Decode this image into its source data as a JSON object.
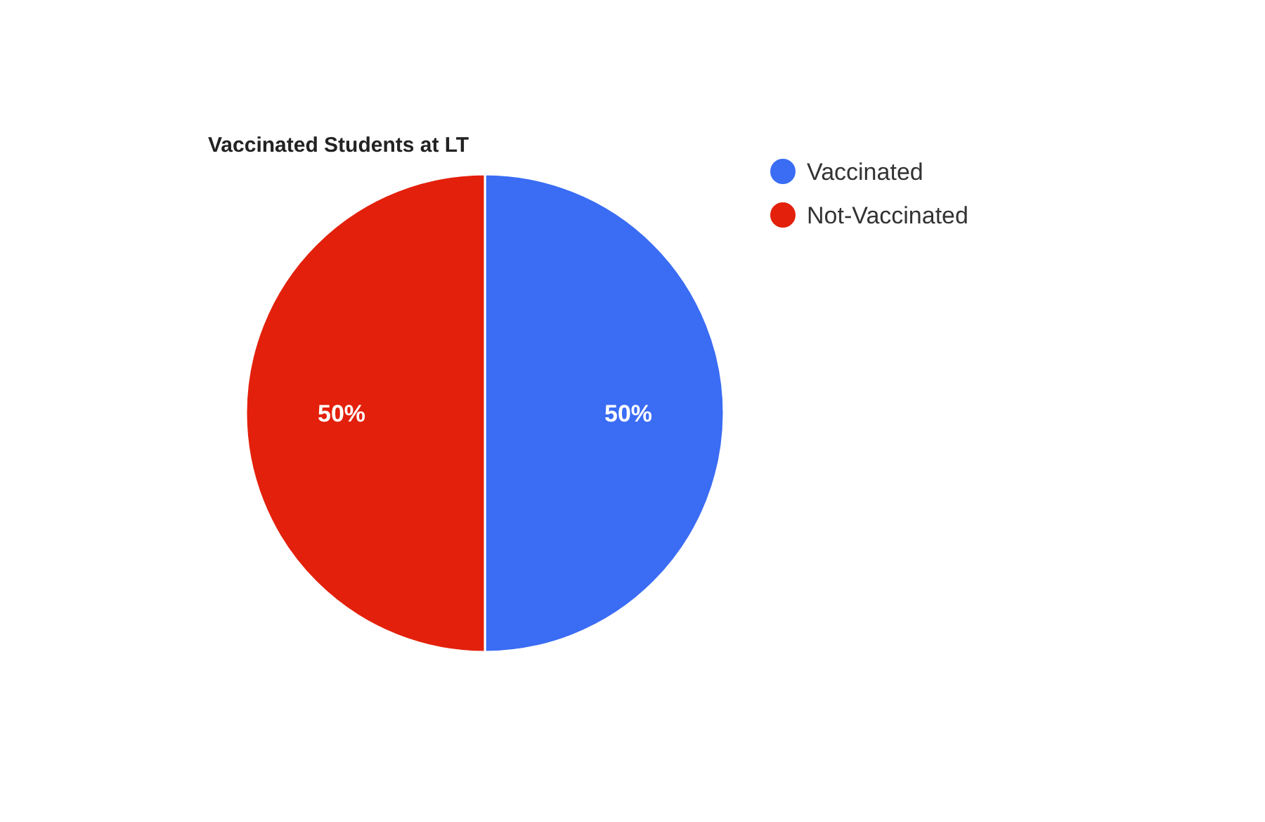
{
  "chart_data": {
    "type": "pie",
    "title": "Vaccinated Students at LT",
    "categories": [
      "Vaccinated",
      "Not-Vaccinated"
    ],
    "values": [
      50,
      50
    ],
    "colors": [
      "#3a6cf4",
      "#e3200b"
    ],
    "value_labels": [
      "50%",
      "50%"
    ],
    "legend": "right"
  }
}
